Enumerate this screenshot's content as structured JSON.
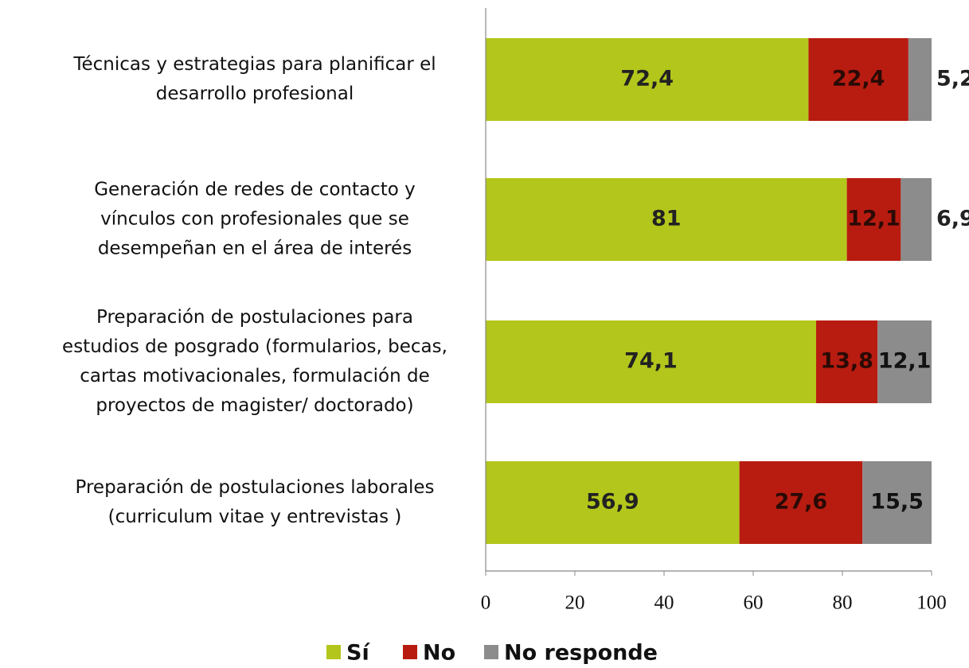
{
  "chart_data": {
    "type": "stacked-barh",
    "categories": [
      [
        "Técnicas y estrategias para planificar el",
        "desarrollo profesional"
      ],
      [
        "Generación de redes de contacto y",
        "vínculos con profesionales que se",
        "desempeñan en el área de interés"
      ],
      [
        "Preparación de postulaciones para",
        "estudios de posgrado (formularios, becas,",
        "cartas motivacionales, formulación de",
        "proyectos de magister/ doctorado)"
      ],
      [
        "Preparación de postulaciones laborales",
        "(curriculum vitae y entrevistas )"
      ]
    ],
    "series": [
      {
        "name": "Sí",
        "color": "#b3c61b",
        "values": [
          72.4,
          81,
          74.1,
          56.9
        ],
        "value_labels": [
          "72,4",
          "81",
          "74,1",
          "56,9"
        ]
      },
      {
        "name": "No",
        "color": "#b81c10",
        "values": [
          22.4,
          12.1,
          13.8,
          27.6
        ],
        "value_labels": [
          "22,4",
          "12,1",
          "13,8",
          "27,6"
        ]
      },
      {
        "name": "No responde",
        "color": "#8c8c8c",
        "values": [
          5.2,
          6.9,
          12.1,
          15.5
        ],
        "value_labels": [
          "5,2",
          "6,9",
          "12,1",
          "15,5"
        ]
      }
    ],
    "xlim": [
      0,
      100
    ],
    "xticks": [
      0,
      20,
      40,
      60,
      80,
      100
    ],
    "legend": "bottom"
  }
}
